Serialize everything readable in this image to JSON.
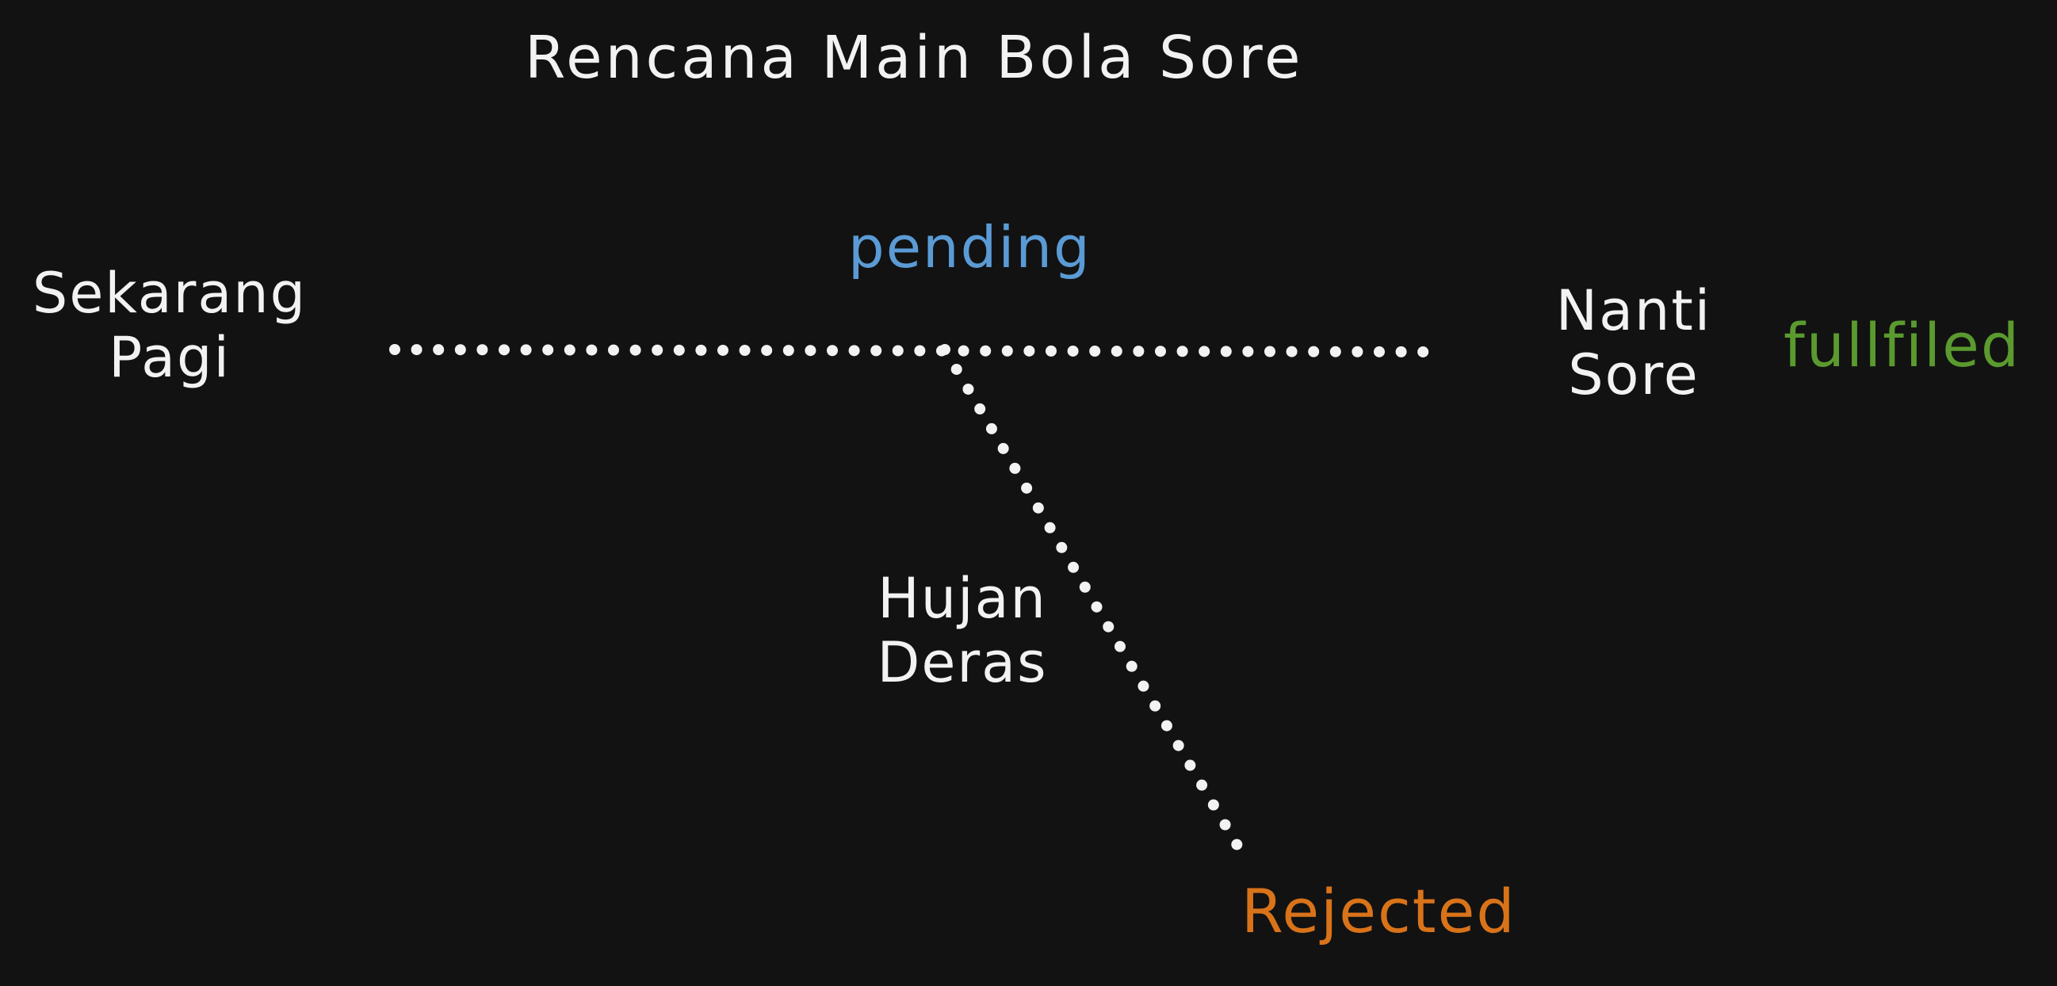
{
  "title": "Rencana Main Bola Sore",
  "start": {
    "line1": "Sekarang",
    "line2": "Pagi"
  },
  "end": {
    "line1": "Nanti",
    "line2": "Sore"
  },
  "cause": {
    "line1": "Hujan",
    "line2": "Deras"
  },
  "states": {
    "pending": "pending",
    "fulfilled": "fullfiled",
    "rejected": "Rejected"
  },
  "colors": {
    "background": "#121212",
    "text": "#f2f2f2",
    "pending": "#5b9bd5",
    "fulfilled": "#5a9a2e",
    "rejected": "#d9731a",
    "dots": "#f2f2f2"
  }
}
